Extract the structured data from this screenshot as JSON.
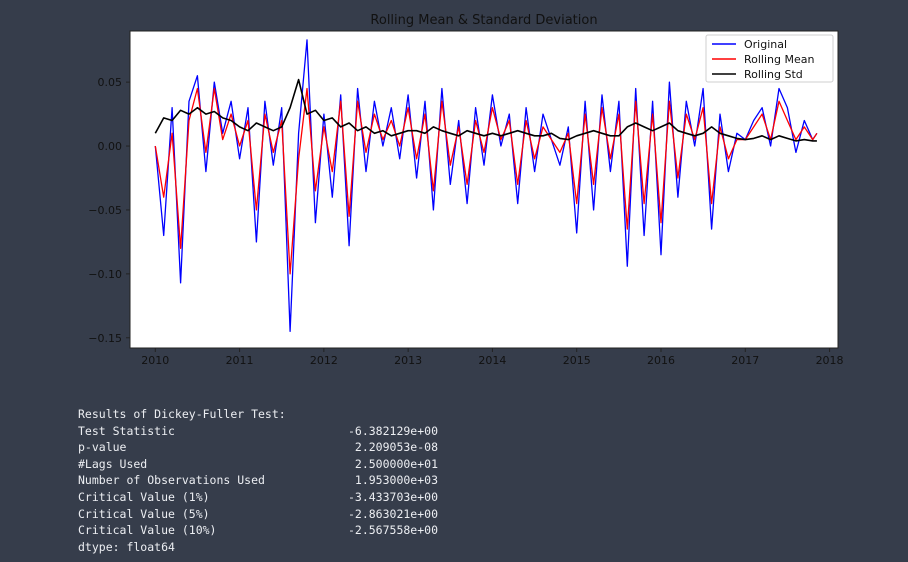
{
  "chart_data": {
    "type": "line",
    "title": "Rolling Mean & Standard Deviation",
    "xlabel": "",
    "ylabel": "",
    "x_ticks": [
      "2010",
      "2011",
      "2012",
      "2013",
      "2014",
      "2015",
      "2016",
      "2017",
      "2018"
    ],
    "y_ticks": [
      "0.05",
      "0.00",
      "−0.05",
      "−0.10",
      "−0.15"
    ],
    "xlim": [
      2009.7,
      2018.1
    ],
    "ylim": [
      -0.158,
      0.09
    ],
    "grid": false,
    "legend_position": "top-right",
    "x_approx": [
      2010.0,
      2010.1,
      2010.2,
      2010.3,
      2010.4,
      2010.5,
      2010.6,
      2010.7,
      2010.8,
      2010.9,
      2011.0,
      2011.1,
      2011.2,
      2011.3,
      2011.4,
      2011.5,
      2011.6,
      2011.7,
      2011.8,
      2011.9,
      2012.0,
      2012.1,
      2012.2,
      2012.3,
      2012.4,
      2012.5,
      2012.6,
      2012.7,
      2012.8,
      2012.9,
      2013.0,
      2013.1,
      2013.2,
      2013.3,
      2013.4,
      2013.5,
      2013.6,
      2013.7,
      2013.8,
      2013.9,
      2014.0,
      2014.1,
      2014.2,
      2014.3,
      2014.4,
      2014.5,
      2014.6,
      2014.7,
      2014.8,
      2014.9,
      2015.0,
      2015.1,
      2015.2,
      2015.3,
      2015.4,
      2015.5,
      2015.6,
      2015.7,
      2015.8,
      2015.9,
      2016.0,
      2016.1,
      2016.2,
      2016.3,
      2016.4,
      2016.5,
      2016.6,
      2016.7,
      2016.8,
      2016.9,
      2017.0,
      2017.1,
      2017.2,
      2017.3,
      2017.4,
      2017.5,
      2017.6,
      2017.7,
      2017.8,
      2017.85
    ],
    "series": [
      {
        "name": "Original",
        "color": "#0000ff",
        "values": [
          0.0,
          -0.07,
          0.03,
          -0.107,
          0.035,
          0.055,
          -0.02,
          0.05,
          0.01,
          0.035,
          -0.01,
          0.03,
          -0.075,
          0.035,
          -0.015,
          0.03,
          -0.145,
          0.01,
          0.083,
          -0.06,
          0.025,
          -0.04,
          0.04,
          -0.078,
          0.045,
          -0.02,
          0.035,
          0.0,
          0.03,
          -0.01,
          0.04,
          -0.025,
          0.035,
          -0.05,
          0.045,
          -0.03,
          0.02,
          -0.045,
          0.03,
          -0.015,
          0.04,
          0.0,
          0.025,
          -0.045,
          0.03,
          -0.02,
          0.025,
          0.005,
          -0.015,
          0.015,
          -0.068,
          0.035,
          -0.05,
          0.04,
          -0.02,
          0.035,
          -0.094,
          0.045,
          -0.07,
          0.035,
          -0.085,
          0.05,
          -0.04,
          0.035,
          0.0,
          0.045,
          -0.065,
          0.025,
          -0.02,
          0.01,
          0.005,
          0.02,
          0.03,
          0.0,
          0.045,
          0.03,
          -0.005,
          0.02,
          0.005,
          0.01
        ]
      },
      {
        "name": "Rolling Mean",
        "color": "#ff0000",
        "values": [
          0.0,
          -0.04,
          0.01,
          -0.08,
          0.02,
          0.045,
          -0.005,
          0.045,
          0.005,
          0.025,
          0.0,
          0.02,
          -0.05,
          0.025,
          -0.005,
          0.02,
          -0.1,
          -0.01,
          0.045,
          -0.035,
          0.015,
          -0.02,
          0.035,
          -0.055,
          0.035,
          -0.005,
          0.025,
          0.005,
          0.02,
          0.0,
          0.03,
          -0.01,
          0.025,
          -0.035,
          0.035,
          -0.015,
          0.015,
          -0.03,
          0.02,
          -0.005,
          0.03,
          0.005,
          0.02,
          -0.03,
          0.02,
          -0.01,
          0.015,
          0.005,
          -0.005,
          0.01,
          -0.045,
          0.025,
          -0.03,
          0.03,
          -0.01,
          0.025,
          -0.065,
          0.035,
          -0.045,
          0.025,
          -0.06,
          0.035,
          -0.025,
          0.025,
          0.005,
          0.03,
          -0.045,
          0.015,
          -0.01,
          0.005,
          0.005,
          0.015,
          0.025,
          0.005,
          0.035,
          0.02,
          0.005,
          0.015,
          0.005,
          0.01
        ]
      },
      {
        "name": "Rolling Std",
        "color": "#000000",
        "values": [
          0.01,
          0.022,
          0.02,
          0.028,
          0.025,
          0.03,
          0.025,
          0.027,
          0.022,
          0.02,
          0.015,
          0.012,
          0.018,
          0.015,
          0.012,
          0.015,
          0.03,
          0.052,
          0.025,
          0.028,
          0.02,
          0.022,
          0.015,
          0.018,
          0.012,
          0.015,
          0.01,
          0.012,
          0.008,
          0.01,
          0.012,
          0.012,
          0.01,
          0.015,
          0.012,
          0.01,
          0.008,
          0.012,
          0.01,
          0.008,
          0.01,
          0.008,
          0.01,
          0.012,
          0.01,
          0.008,
          0.008,
          0.01,
          0.006,
          0.005,
          0.008,
          0.01,
          0.012,
          0.01,
          0.008,
          0.008,
          0.015,
          0.018,
          0.015,
          0.012,
          0.015,
          0.018,
          0.012,
          0.01,
          0.008,
          0.01,
          0.015,
          0.01,
          0.008,
          0.006,
          0.005,
          0.006,
          0.008,
          0.005,
          0.008,
          0.006,
          0.004,
          0.005,
          0.004,
          0.004
        ]
      }
    ]
  },
  "stats": {
    "heading": "Results of Dickey-Fuller Test:",
    "rows": [
      {
        "label": "Test Statistic",
        "value": "-6.382129e+00"
      },
      {
        "label": "p-value",
        "value": "2.209053e-08"
      },
      {
        "label": "#Lags Used",
        "value": "2.500000e+01"
      },
      {
        "label": "Number of Observations Used",
        "value": "1.953000e+03"
      },
      {
        "label": "Critical Value (1%)",
        "value": "-3.433703e+00"
      },
      {
        "label": "Critical Value (5%)",
        "value": "-2.863021e+00"
      },
      {
        "label": "Critical Value (10%)",
        "value": "-2.567558e+00"
      }
    ],
    "dtype": "dtype: float64"
  }
}
